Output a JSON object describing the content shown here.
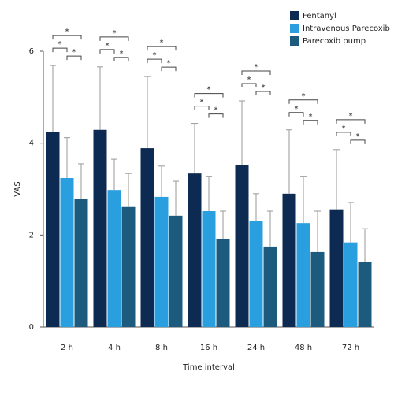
{
  "chart_data": {
    "type": "bar",
    "x_label": "Time interval",
    "y_label": "VAS",
    "categories": [
      "2 h",
      "4 h",
      "8 h",
      "16 h",
      "24 h",
      "48 h",
      "72 h"
    ],
    "series": [
      {
        "name": "Fentanyl",
        "color": "#0d2a52",
        "values": [
          4.24,
          4.29,
          3.89,
          3.34,
          3.52,
          2.9,
          2.56
        ],
        "errors": [
          1.45,
          1.37,
          1.56,
          1.09,
          1.4,
          1.39,
          1.3
        ]
      },
      {
        "name": "Intravenous Parecoxib",
        "color": "#2a9fe0",
        "values": [
          3.24,
          2.98,
          2.83,
          2.52,
          2.3,
          2.26,
          1.84
        ],
        "errors": [
          0.88,
          0.67,
          0.67,
          0.76,
          0.6,
          1.02,
          0.87
        ]
      },
      {
        "name": "Parecoxib pump",
        "color": "#1d5b7e",
        "values": [
          2.78,
          2.61,
          2.42,
          1.92,
          1.75,
          1.63,
          1.41
        ],
        "errors": [
          0.77,
          0.73,
          0.75,
          0.6,
          0.77,
          0.89,
          0.73
        ]
      }
    ],
    "significance": [
      [
        "*",
        "*",
        "*"
      ],
      [
        "*",
        "*",
        "*"
      ],
      [
        "*",
        "*",
        "*"
      ],
      [
        "*",
        "*",
        "*"
      ],
      [
        "*",
        "*",
        "*"
      ],
      [
        "*",
        "*",
        "*"
      ],
      [
        "*",
        "*",
        "*"
      ]
    ],
    "ylim": [
      0,
      6
    ],
    "yticks": [
      0,
      2,
      4,
      6
    ],
    "legend": "top-right"
  }
}
